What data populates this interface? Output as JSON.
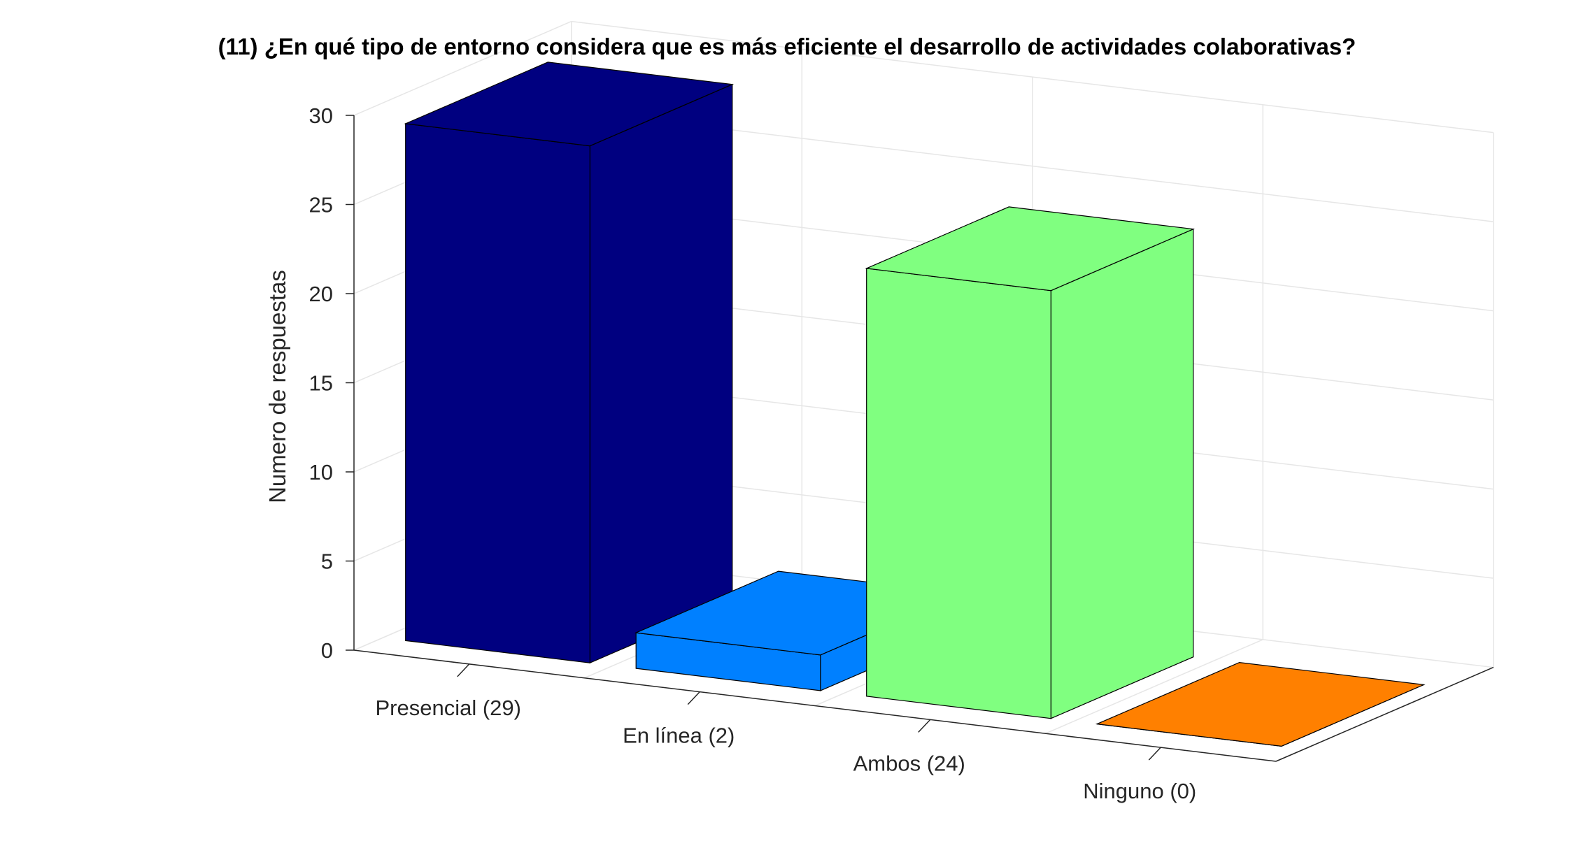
{
  "chart_data": {
    "type": "bar",
    "style": "3d",
    "title": "(11) ¿En qué tipo de entorno considera que es más eficiente el desarrollo de actividades colaborativas?",
    "ylabel": "Numero de respuestas",
    "xlabel": "",
    "ylim": [
      0,
      30
    ],
    "yticks": [
      "0",
      "5",
      "10",
      "15",
      "20",
      "25",
      "30"
    ],
    "categories": [
      "Presencial (29)",
      "En línea (2)",
      "Ambos (24)",
      "Ninguno (0)"
    ],
    "values": [
      29,
      2,
      24,
      0
    ],
    "colors": [
      "#000080",
      "#0080ff",
      "#80ff80",
      "#ff8000"
    ],
    "grid": true
  }
}
